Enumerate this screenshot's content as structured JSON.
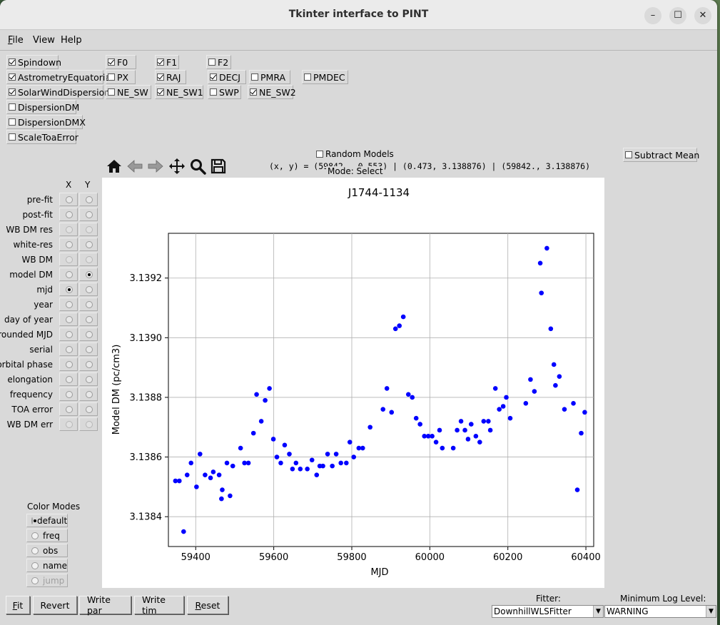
{
  "window": {
    "title": "Tkinter interface to PINT"
  },
  "menu": {
    "file": "File",
    "view": "View",
    "help": "Help"
  },
  "components": [
    {
      "name": "Spindown",
      "checked": true,
      "params": [
        {
          "name": "F0",
          "checked": true
        },
        {
          "name": "F1",
          "checked": true
        },
        {
          "name": "F2",
          "checked": false
        }
      ]
    },
    {
      "name": "AstrometryEquatorial",
      "checked": true,
      "params": [
        {
          "name": "PX",
          "checked": false
        },
        {
          "name": "RAJ",
          "checked": true
        },
        {
          "name": "DECJ",
          "checked": true
        },
        {
          "name": "PMRA",
          "checked": false
        },
        {
          "name": "PMDEC",
          "checked": false
        }
      ]
    },
    {
      "name": "SolarWindDispersion",
      "checked": true,
      "params": [
        {
          "name": "NE_SW",
          "checked": false
        },
        {
          "name": "NE_SW1",
          "checked": true
        },
        {
          "name": "SWP",
          "checked": false
        },
        {
          "name": "NE_SW2",
          "checked": true
        }
      ]
    },
    {
      "name": "DispersionDM",
      "checked": false,
      "params": []
    },
    {
      "name": "DispersionDMX",
      "checked": false,
      "params": []
    },
    {
      "name": "ScaleToaError",
      "checked": false,
      "params": []
    }
  ],
  "plot_toolbar": {
    "coords": "(x, y) = (59842., 0.553) | (0.473, 3.138876) | (59842., 3.138876)",
    "mode": "Mode: Select",
    "random_models": "Random Models"
  },
  "subtract_mean": "Subtract Mean",
  "axis_selector": {
    "x_header": "X",
    "y_header": "Y",
    "rows": [
      {
        "label": "pre-fit",
        "x": false,
        "y": false,
        "disabled": false
      },
      {
        "label": "post-fit",
        "x": false,
        "y": false,
        "disabled": false
      },
      {
        "label": "WB DM res",
        "x": false,
        "y": false,
        "disabled": true
      },
      {
        "label": "white-res",
        "x": false,
        "y": false,
        "disabled": false
      },
      {
        "label": "WB DM",
        "x": false,
        "y": false,
        "disabled": true
      },
      {
        "label": "model DM",
        "x": false,
        "y": true,
        "disabled": false
      },
      {
        "label": "mjd",
        "x": true,
        "y": false,
        "disabled": false
      },
      {
        "label": "year",
        "x": false,
        "y": false,
        "disabled": false
      },
      {
        "label": "day of year",
        "x": false,
        "y": false,
        "disabled": false
      },
      {
        "label": "rounded MJD",
        "x": false,
        "y": false,
        "disabled": false
      },
      {
        "label": "serial",
        "x": false,
        "y": false,
        "disabled": false
      },
      {
        "label": "orbital phase",
        "x": false,
        "y": false,
        "disabled": false
      },
      {
        "label": "elongation",
        "x": false,
        "y": false,
        "disabled": false
      },
      {
        "label": "frequency",
        "x": false,
        "y": false,
        "disabled": false
      },
      {
        "label": "TOA error",
        "x": false,
        "y": false,
        "disabled": false
      },
      {
        "label": "WB DM err",
        "x": false,
        "y": false,
        "disabled": true
      }
    ]
  },
  "color_modes": {
    "title": "Color Modes",
    "options": [
      {
        "label": "default",
        "selected": true,
        "disabled": false
      },
      {
        "label": "freq",
        "selected": false,
        "disabled": false
      },
      {
        "label": "obs",
        "selected": false,
        "disabled": false
      },
      {
        "label": "name",
        "selected": false,
        "disabled": false
      },
      {
        "label": "jump",
        "selected": false,
        "disabled": true
      }
    ]
  },
  "buttons": {
    "fit": "Fit",
    "revert": "Revert",
    "write_par": "Write par",
    "write_tim": "Write tim",
    "reset": "Reset"
  },
  "fitter": {
    "label": "Fitter:",
    "value": "DownhillWLSFitter"
  },
  "log_level": {
    "label": "Minimum Log Level:",
    "value": "WARNING"
  },
  "chart_data": {
    "type": "scatter",
    "title": "J1744-1134",
    "xlabel": "MJD",
    "ylabel": "Model DM (pc/cm3)",
    "xlim": [
      59330,
      60420
    ],
    "ylim": [
      3.1383,
      3.13935
    ],
    "xticks": [
      59400,
      59600,
      59800,
      60000,
      60200,
      60400
    ],
    "yticks": [
      3.1384,
      3.1386,
      3.1388,
      3.139,
      3.1392
    ],
    "ytick_labels": [
      "3.1384",
      "3.1386",
      "3.1388",
      "3.1390",
      "3.1392"
    ],
    "grid": true,
    "color": "#0000ff",
    "points": [
      [
        59348,
        3.13852
      ],
      [
        59358,
        3.13852
      ],
      [
        59369,
        3.13835
      ],
      [
        59378,
        3.13854
      ],
      [
        59388,
        3.13858
      ],
      [
        59402,
        3.1385
      ],
      [
        59411,
        3.13861
      ],
      [
        59424,
        3.13854
      ],
      [
        59438,
        3.13853
      ],
      [
        59445,
        3.13855
      ],
      [
        59460,
        3.13854
      ],
      [
        59466,
        3.13846
      ],
      [
        59468,
        3.13849
      ],
      [
        59480,
        3.13858
      ],
      [
        59488,
        3.13847
      ],
      [
        59495,
        3.13857
      ],
      [
        59515,
        3.13863
      ],
      [
        59525,
        3.13858
      ],
      [
        59535,
        3.13858
      ],
      [
        59548,
        3.13868
      ],
      [
        59556,
        3.13881
      ],
      [
        59568,
        3.13872
      ],
      [
        59578,
        3.13879
      ],
      [
        59589,
        3.13883
      ],
      [
        59599,
        3.13866
      ],
      [
        59608,
        3.1386
      ],
      [
        59618,
        3.13858
      ],
      [
        59628,
        3.13864
      ],
      [
        59640,
        3.13861
      ],
      [
        59648,
        3.13856
      ],
      [
        59657,
        3.13858
      ],
      [
        59668,
        3.13856
      ],
      [
        59686,
        3.13856
      ],
      [
        59698,
        3.13859
      ],
      [
        59710,
        3.13854
      ],
      [
        59718,
        3.13857
      ],
      [
        59726,
        3.13857
      ],
      [
        59738,
        3.13861
      ],
      [
        59750,
        3.13857
      ],
      [
        59760,
        3.13861
      ],
      [
        59772,
        3.13858
      ],
      [
        59786,
        3.13858
      ],
      [
        59795,
        3.13865
      ],
      [
        59805,
        3.1386
      ],
      [
        59818,
        3.13863
      ],
      [
        59828,
        3.13863
      ],
      [
        59847,
        3.1387
      ],
      [
        59880,
        3.13876
      ],
      [
        59890,
        3.13883
      ],
      [
        59902,
        3.13875
      ],
      [
        59912,
        3.13903
      ],
      [
        59922,
        3.13904
      ],
      [
        59932,
        3.13907
      ],
      [
        59945,
        3.13881
      ],
      [
        59955,
        3.1388
      ],
      [
        59965,
        3.13873
      ],
      [
        59975,
        3.13871
      ],
      [
        59986,
        3.13867
      ],
      [
        59996,
        3.13867
      ],
      [
        60006,
        3.13867
      ],
      [
        60016,
        3.13865
      ],
      [
        60025,
        3.13869
      ],
      [
        60032,
        3.13863
      ],
      [
        60060,
        3.13863
      ],
      [
        60070,
        3.13869
      ],
      [
        60080,
        3.13872
      ],
      [
        60090,
        3.13869
      ],
      [
        60098,
        3.13866
      ],
      [
        60106,
        3.13871
      ],
      [
        60118,
        3.13867
      ],
      [
        60128,
        3.13865
      ],
      [
        60138,
        3.13872
      ],
      [
        60150,
        3.13872
      ],
      [
        60155,
        3.13869
      ],
      [
        60168,
        3.13883
      ],
      [
        60178,
        3.13876
      ],
      [
        60188,
        3.13877
      ],
      [
        60196,
        3.1388
      ],
      [
        60206,
        3.13873
      ],
      [
        60246,
        3.13878
      ],
      [
        60258,
        3.13886
      ],
      [
        60268,
        3.13882
      ],
      [
        60283,
        3.13925
      ],
      [
        60286,
        3.13915
      ],
      [
        60300,
        3.1393
      ],
      [
        60310,
        3.13903
      ],
      [
        60318,
        3.13891
      ],
      [
        60322,
        3.13884
      ],
      [
        60332,
        3.13887
      ],
      [
        60345,
        3.13876
      ],
      [
        60368,
        3.13878
      ],
      [
        60378,
        3.13849
      ],
      [
        60388,
        3.13868
      ],
      [
        60397,
        3.13875
      ]
    ]
  }
}
